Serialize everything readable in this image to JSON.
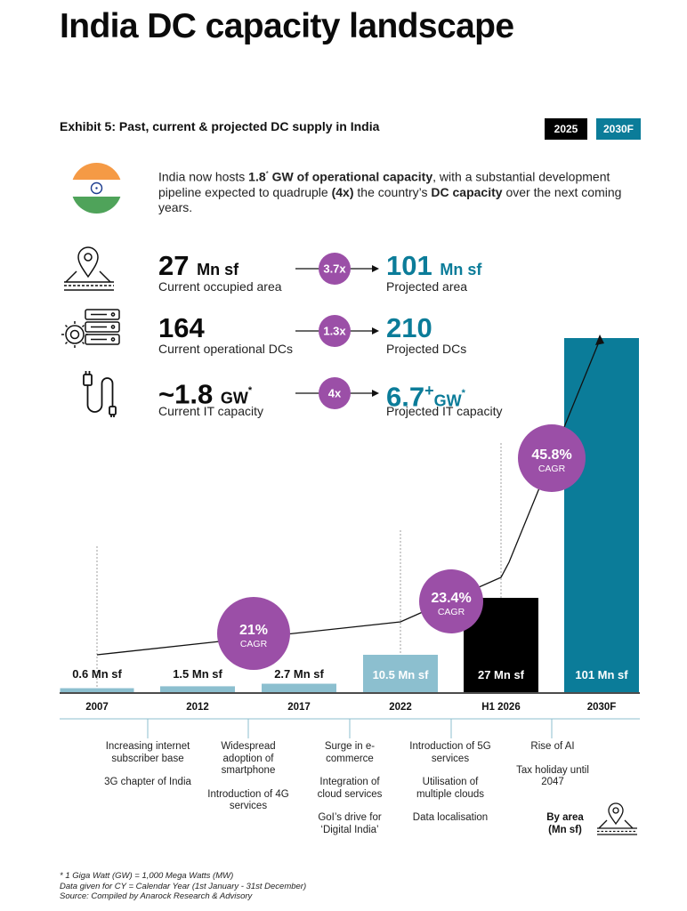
{
  "title": "India DC capacity landscape",
  "exhibit": "Exhibit 5: Past, current & projected DC supply in India",
  "badges": {
    "current": "2025",
    "projected": "2030F",
    "current_color": "#000000",
    "projected_color": "#0b7c99"
  },
  "intro": {
    "p1": "India now hosts ",
    "b1": "1.8",
    "sup1": "*",
    "b2": " GW of operational capacity",
    "p2": ", with a substantial development pipeline expected to quadruple ",
    "b3": "(4x)",
    "p3": " the country’s ",
    "b4": "DC capacity",
    "p4": " over the next coming years."
  },
  "icons": {
    "flag": "india-flag-icon",
    "area": "map-pin-area-icon",
    "servers": "server-rack-icon",
    "power": "power-plug-icon"
  },
  "stats": [
    {
      "current_value": "27",
      "current_unit": "Mn sf",
      "current_label": "Current occupied area",
      "multiplier": "3.7x",
      "projected_value": "101",
      "projected_unit": "Mn sf",
      "projected_label": "Projected area"
    },
    {
      "current_value": "164",
      "current_unit": "",
      "current_label": "Current operational DCs",
      "multiplier": "1.3x",
      "projected_value": "210",
      "projected_unit": "",
      "projected_label": "Projected DCs"
    },
    {
      "current_value": "~1.8",
      "current_unit": "GW",
      "current_sup": "*",
      "current_label": "Current IT capacity",
      "multiplier": "4x",
      "projected_value": "6.7",
      "projected_sup_plus": "+",
      "projected_unit": "GW",
      "projected_sup": "*",
      "projected_label": "Projected IT capacity"
    }
  ],
  "chart_data": {
    "type": "bar",
    "categories": [
      "2007",
      "2012",
      "2017",
      "2022",
      "H1 2026",
      "2030F"
    ],
    "values": [
      0.6,
      1.5,
      2.7,
      10.5,
      27,
      101
    ],
    "value_labels": [
      "0.6 Mn sf",
      "1.5 Mn sf",
      "2.7 Mn sf",
      "10.5 Mn sf",
      "27 Mn sf",
      "101 Mn sf"
    ],
    "unit": "Mn sf",
    "bar_colors": [
      "#8cbfcf",
      "#8cbfcf",
      "#8cbfcf",
      "#8cbfcf",
      "#000000",
      "#0b7c99"
    ],
    "ylim": [
      0,
      101
    ],
    "cagr": [
      {
        "value": "21%",
        "label": "CAGR"
      },
      {
        "value": "23.4%",
        "label": "CAGR"
      },
      {
        "value": "45.8%",
        "label": "CAGR"
      }
    ],
    "cagr_color": "#9b4fa7",
    "legend": "By area (Mn sf)"
  },
  "drivers": [
    [
      "Increasing internet subscriber base",
      "3G chapter of India"
    ],
    [
      "Widespread adoption of smartphone",
      "Introduction of 4G services"
    ],
    [
      "Surge in e-commerce",
      "Integration of cloud services",
      "GoI’s drive for ‘Digital India’"
    ],
    [
      "Introduction of 5G services",
      "Utilisation of multiple clouds",
      "Data localisation"
    ],
    [
      "Rise of AI",
      "Tax holiday until 2047"
    ]
  ],
  "legend": {
    "line1": "By area",
    "line2": "(Mn sf)"
  },
  "notes": {
    "n1": "* 1 Giga Watt (GW) = 1,000 Mega Watts (MW)",
    "n2": "Data given for CY = Calendar Year (1st January - 31st December)",
    "n3": "Source: Compiled by Anarock Research & Advisory"
  }
}
